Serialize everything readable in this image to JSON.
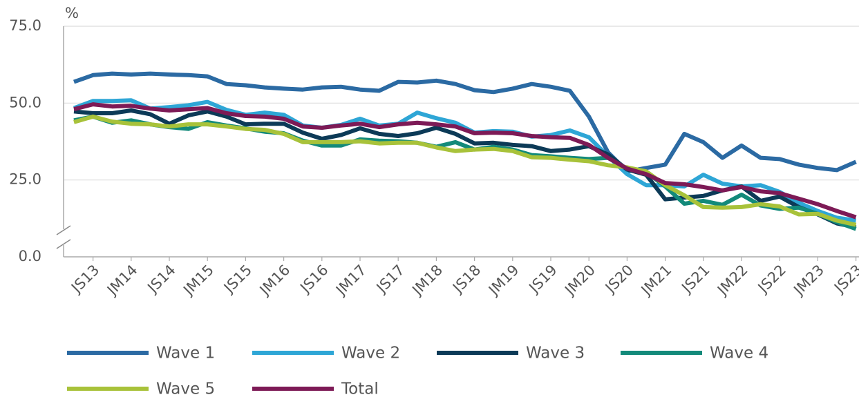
{
  "chart_data": {
    "type": "line",
    "y_label": "%",
    "categories": [
      null,
      "JS13",
      null,
      "JM14",
      null,
      "JS14",
      null,
      "JM15",
      null,
      "JS15",
      null,
      "JM16",
      null,
      "JS16",
      null,
      "JM17",
      null,
      "JS17",
      null,
      "JM18",
      null,
      "JS18",
      null,
      "JM19",
      null,
      "JS19",
      null,
      "JM20",
      null,
      "JS20",
      null,
      "JM21",
      null,
      "JS21",
      null,
      "JM22",
      null,
      "JS22",
      null,
      "JM23",
      null,
      "JS23"
    ],
    "ylim": [
      0,
      75
    ],
    "yticks": [
      {
        "value": 0,
        "label": "0.0"
      },
      {
        "value": 25,
        "label": "25.0"
      },
      {
        "value": 50,
        "label": "50.0"
      },
      {
        "value": 75,
        "label": "75.0"
      }
    ],
    "grid": true,
    "legend": "bottom",
    "series": [
      {
        "name": "Wave 1",
        "color": "#2b6aa3",
        "values": [
          56.9,
          59.1,
          59.6,
          59.3,
          59.6,
          59.3,
          59.1,
          58.7,
          56.2,
          55.8,
          55.1,
          54.7,
          54.4,
          55.1,
          55.3,
          54.4,
          54.0,
          56.9,
          56.7,
          57.3,
          56.2,
          54.2,
          53.6,
          54.7,
          56.2,
          55.3,
          54.0,
          45.6,
          34.0,
          27.8,
          28.9,
          30.0,
          40.0,
          37.3,
          32.2,
          36.2,
          32.2,
          31.8,
          30.0,
          28.9,
          28.2,
          30.9
        ]
      },
      {
        "name": "Wave 2",
        "color": "#2ea6d6",
        "values": [
          48.4,
          50.7,
          50.7,
          50.9,
          48.2,
          48.7,
          49.3,
          50.4,
          47.8,
          46.2,
          46.9,
          46.2,
          42.7,
          42.0,
          42.9,
          44.9,
          42.7,
          43.3,
          46.9,
          45.1,
          43.6,
          40.4,
          40.9,
          40.7,
          39.1,
          39.6,
          41.1,
          38.9,
          32.7,
          26.9,
          23.3,
          23.3,
          22.9,
          26.7,
          23.8,
          22.9,
          23.3,
          21.1,
          17.6,
          14.9,
          12.7,
          11.8
        ]
      },
      {
        "name": "Wave 3",
        "color": "#0c3a57",
        "values": [
          47.3,
          46.7,
          46.7,
          47.6,
          46.4,
          43.3,
          46.0,
          47.3,
          45.6,
          43.1,
          43.3,
          43.3,
          40.4,
          38.4,
          39.6,
          41.8,
          40.0,
          39.3,
          40.2,
          42.0,
          40.0,
          36.9,
          37.1,
          36.4,
          36.0,
          34.4,
          34.9,
          36.0,
          33.3,
          28.4,
          26.7,
          18.7,
          19.3,
          19.8,
          21.6,
          22.9,
          18.2,
          19.6,
          16.2,
          13.8,
          10.9,
          9.6
        ]
      },
      {
        "name": "Wave 4",
        "color": "#138a7a",
        "values": [
          44.4,
          45.6,
          43.6,
          44.4,
          43.1,
          42.2,
          41.6,
          43.8,
          42.7,
          41.8,
          40.7,
          40.2,
          37.8,
          36.2,
          36.2,
          38.2,
          37.8,
          37.6,
          37.1,
          35.8,
          37.3,
          34.9,
          35.8,
          34.9,
          33.1,
          32.7,
          32.2,
          31.8,
          32.2,
          28.7,
          27.6,
          22.9,
          17.3,
          18.2,
          16.9,
          20.2,
          16.7,
          15.6,
          16.0,
          14.0,
          11.3,
          9.1
        ]
      },
      {
        "name": "Wave 5",
        "color": "#a8c23a",
        "values": [
          43.8,
          45.6,
          44.0,
          43.3,
          43.1,
          42.4,
          43.1,
          43.1,
          42.4,
          41.6,
          41.3,
          40.0,
          37.3,
          37.3,
          37.3,
          37.6,
          36.9,
          37.1,
          37.1,
          35.6,
          34.4,
          34.9,
          35.1,
          34.4,
          32.4,
          32.2,
          31.6,
          31.1,
          29.8,
          29.1,
          27.8,
          23.3,
          20.0,
          16.2,
          16.0,
          16.2,
          17.1,
          16.4,
          13.8,
          14.0,
          11.8,
          10.4
        ]
      },
      {
        "name": "Total",
        "color": "#7d1a56",
        "values": [
          48.0,
          49.6,
          48.9,
          49.1,
          48.2,
          47.6,
          48.0,
          48.4,
          46.7,
          45.8,
          45.6,
          44.9,
          42.4,
          42.0,
          42.7,
          43.3,
          42.2,
          43.1,
          43.6,
          43.1,
          42.4,
          40.2,
          40.4,
          40.2,
          39.3,
          38.9,
          38.7,
          36.4,
          32.2,
          28.7,
          26.9,
          24.0,
          23.6,
          22.7,
          21.6,
          22.7,
          21.3,
          20.7,
          18.9,
          17.1,
          14.9,
          12.9
        ]
      }
    ]
  }
}
